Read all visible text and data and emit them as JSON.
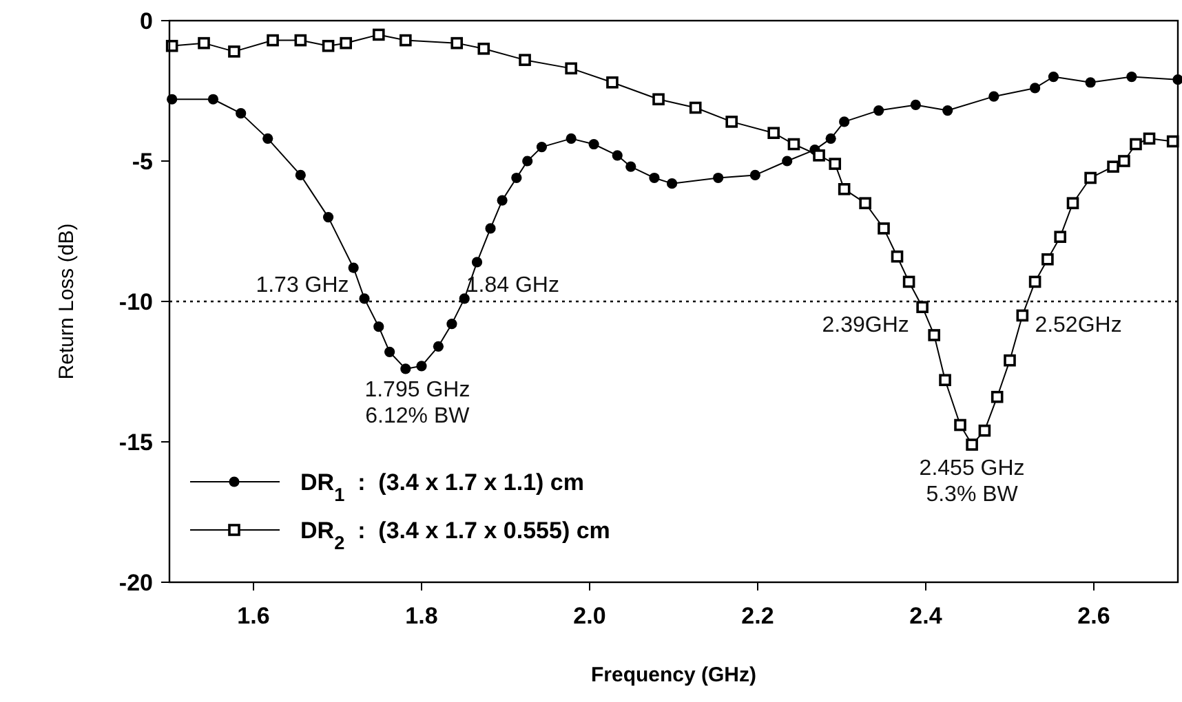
{
  "chart_data": {
    "type": "line",
    "xlabel": "Frequency (GHz)",
    "ylabel": "Return Loss (dB)",
    "xlim": [
      1.5,
      2.7
    ],
    "ylim": [
      -20,
      0
    ],
    "xticks": [
      1.6,
      1.8,
      {
        "value": 2,
        "label": "2.0"
      },
      2.2,
      2.4,
      2.6
    ],
    "yticks": [
      0,
      -5,
      -10,
      -15,
      -20
    ],
    "grid": false,
    "legend": "bottom left",
    "line_style": "solid",
    "ref_lines": [
      {
        "axis": "y",
        "value": -10,
        "line_style": "dotted",
        "color": "#000000"
      }
    ],
    "annotations": [
      {
        "text": "1.73 GHz",
        "x": 1.73,
        "y": -10
      },
      {
        "text": "1.84 GHz",
        "x": 1.84,
        "y": -10
      },
      {
        "text": "1.795 GHz\n6.12% BW",
        "x": 1.795,
        "y": -12.4
      },
      {
        "text": "2.39GHz",
        "x": 2.39,
        "y": -10
      },
      {
        "text": "2.52GHz",
        "x": 2.52,
        "y": -10
      },
      {
        "text": "2.455 GHz\n5.3% BW",
        "x": 2.455,
        "y": -15.1
      }
    ],
    "series": [
      {
        "name": "DR$_{1}$  :  (3.4 x 1.7 x 1.1) cm",
        "color": "#000000",
        "marker": "circle",
        "x": [
          1.503,
          1.552,
          1.585,
          1.617,
          1.656,
          1.689,
          1.719,
          1.732,
          1.749,
          1.762,
          1.781,
          1.8,
          1.82,
          1.836,
          1.851,
          1.866,
          1.882,
          1.896,
          1.913,
          1.926,
          1.943,
          1.978,
          2.005,
          2.033,
          2.049,
          2.077,
          2.098,
          2.153,
          2.197,
          2.235,
          2.268,
          2.287,
          2.303,
          2.344,
          2.388,
          2.426,
          2.481,
          2.53,
          2.552,
          2.596,
          2.645,
          2.7
        ],
        "values": [
          -2.8,
          -2.8,
          -3.3,
          -4.2,
          -5.5,
          -7.0,
          -8.8,
          -9.9,
          -10.9,
          -11.8,
          -12.4,
          -12.3,
          -11.6,
          -10.8,
          -9.9,
          -8.6,
          -7.4,
          -6.4,
          -5.6,
          -5.0,
          -4.5,
          -4.2,
          -4.4,
          -4.8,
          -5.2,
          -5.6,
          -5.8,
          -5.6,
          -5.5,
          -5.0,
          -4.6,
          -4.2,
          -3.6,
          -3.2,
          -3.0,
          -3.2,
          -2.7,
          -2.4,
          -2.0,
          -2.2,
          -2.0,
          -2.1
        ]
      },
      {
        "name": "DR$_{2}$  :  (3.4 x 1.7 x 0.555) cm",
        "color": "#000000",
        "marker": "square",
        "x": [
          1.503,
          1.541,
          1.577,
          1.623,
          1.656,
          1.689,
          1.71,
          1.749,
          1.781,
          1.842,
          1.874,
          1.923,
          1.978,
          2.027,
          2.082,
          2.126,
          2.169,
          2.219,
          2.243,
          2.273,
          2.292,
          2.303,
          2.328,
          2.35,
          2.366,
          2.38,
          2.396,
          2.41,
          2.423,
          2.441,
          2.455,
          2.47,
          2.485,
          2.5,
          2.515,
          2.53,
          2.545,
          2.56,
          2.575,
          2.596,
          2.623,
          2.636,
          2.65,
          2.666,
          2.694
        ],
        "values": [
          -0.9,
          -0.8,
          -1.1,
          -0.7,
          -0.7,
          -0.9,
          -0.8,
          -0.5,
          -0.7,
          -0.8,
          -1.0,
          -1.4,
          -1.7,
          -2.2,
          -2.8,
          -3.1,
          -3.6,
          -4.0,
          -4.4,
          -4.8,
          -5.1,
          -6.0,
          -6.5,
          -7.4,
          -8.4,
          -9.3,
          -10.2,
          -11.2,
          -12.8,
          -14.4,
          -15.1,
          -14.6,
          -13.4,
          -12.1,
          -10.5,
          -9.3,
          -8.5,
          -7.7,
          -6.5,
          -5.6,
          -5.2,
          -5.0,
          -4.4,
          -4.2,
          -4.3
        ]
      }
    ]
  }
}
